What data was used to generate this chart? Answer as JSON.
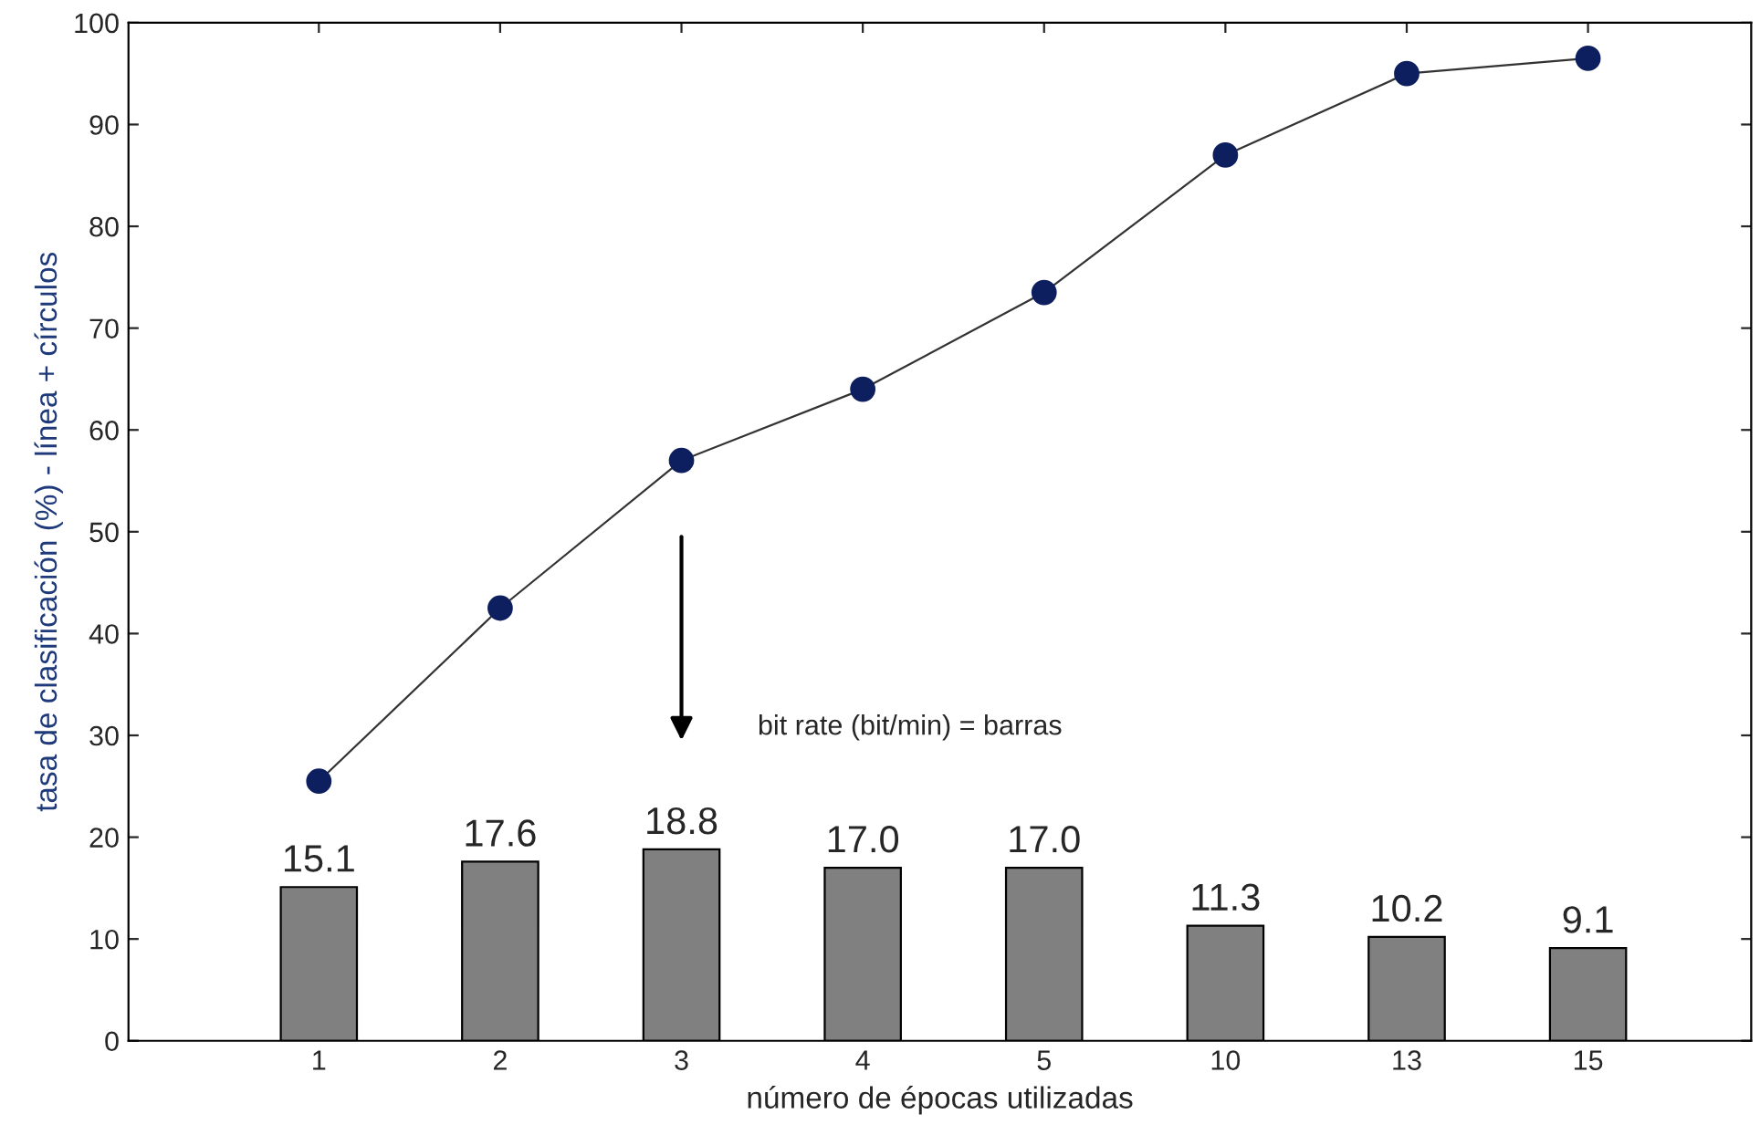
{
  "chart_data": {
    "type": "bar",
    "xlabel": "número de épocas utilizadas",
    "ylabel": "tasa de clasificación (%) - línea + círculos",
    "categories": [
      "1",
      "2",
      "3",
      "4",
      "5",
      "10",
      "13",
      "15"
    ],
    "series": [
      {
        "color": "#808080",
        "values": [
          15.1,
          17.6,
          18.8,
          17.0,
          17.0,
          11.3,
          10.2,
          9.1
        ],
        "value_labels": [
          "15.1",
          "17.6",
          "18.8",
          "17.0",
          "17.0",
          "11.3",
          "10.2",
          "9.1"
        ]
      },
      {
        "type": "line",
        "color": "#0d1f5e",
        "marker": "circle",
        "line_style": "solid",
        "values": [
          25.5,
          42.5,
          57,
          64,
          73.5,
          87,
          95,
          96.5
        ]
      }
    ],
    "ylim": [
      0,
      100
    ],
    "yticks": [
      0,
      10,
      20,
      30,
      40,
      50,
      60,
      70,
      80,
      90,
      100
    ],
    "grid": false,
    "legend": false,
    "annotations": [
      "bit rate (bit/min) = barras"
    ]
  }
}
